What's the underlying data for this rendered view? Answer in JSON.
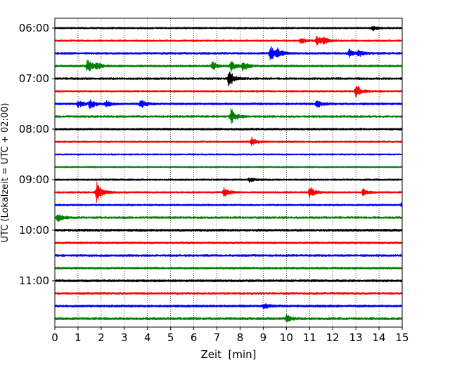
{
  "chart_data": {
    "type": "line",
    "title": "",
    "xlabel": "Zeit  [min]",
    "ylabel": "UTC (Lokalzeit = UTC + 02:00)",
    "xlim": [
      0,
      15
    ],
    "x_ticks": [
      "0",
      "1",
      "2",
      "3",
      "4",
      "5",
      "6",
      "7",
      "8",
      "9",
      "10",
      "11",
      "12",
      "13",
      "14",
      "15"
    ],
    "y_ticks": [
      "06:00",
      "07:00",
      "08:00",
      "09:00",
      "10:00",
      "11:00"
    ],
    "row_interval_min": 15,
    "vertical_grid": "dotted",
    "series": [
      {
        "start": "06:00",
        "color": "#000000",
        "amp": 0.12,
        "events": [
          {
            "x": 13.7,
            "amp": 0.4
          }
        ]
      },
      {
        "start": "06:15",
        "color": "#ff0000",
        "amp": 0.12,
        "events": [
          {
            "x": 10.6,
            "amp": 0.5
          },
          {
            "x": 11.3,
            "amp": 0.7
          },
          {
            "x": 11.6,
            "amp": 0.5
          }
        ]
      },
      {
        "start": "06:30",
        "color": "#0000ff",
        "amp": 0.14,
        "events": [
          {
            "x": 9.3,
            "amp": 1.1
          },
          {
            "x": 9.6,
            "amp": 0.7
          },
          {
            "x": 12.7,
            "amp": 0.6
          },
          {
            "x": 13.1,
            "amp": 0.5
          }
        ]
      },
      {
        "start": "06:45",
        "color": "#008000",
        "amp": 0.14,
        "events": [
          {
            "x": 1.4,
            "amp": 1.1
          },
          {
            "x": 1.8,
            "amp": 0.4
          },
          {
            "x": 6.8,
            "amp": 0.6
          },
          {
            "x": 7.6,
            "amp": 0.9
          },
          {
            "x": 8.1,
            "amp": 0.7
          }
        ]
      },
      {
        "start": "07:00",
        "color": "#000000",
        "amp": 0.14,
        "events": [
          {
            "x": 7.5,
            "amp": 1.4
          }
        ]
      },
      {
        "start": "07:15",
        "color": "#ff0000",
        "amp": 0.12,
        "events": [
          {
            "x": 13.0,
            "amp": 1.0
          }
        ]
      },
      {
        "start": "07:30",
        "color": "#0000ff",
        "amp": 0.14,
        "events": [
          {
            "x": 1.0,
            "amp": 0.5
          },
          {
            "x": 1.5,
            "amp": 0.8
          },
          {
            "x": 2.2,
            "amp": 0.4
          },
          {
            "x": 3.7,
            "amp": 0.7
          },
          {
            "x": 11.3,
            "amp": 0.6
          }
        ]
      },
      {
        "start": "07:45",
        "color": "#008000",
        "amp": 0.14,
        "events": [
          {
            "x": 7.6,
            "amp": 1.2
          }
        ]
      },
      {
        "start": "08:00",
        "color": "#000000",
        "amp": 0.14,
        "events": []
      },
      {
        "start": "08:15",
        "color": "#ff0000",
        "amp": 0.12,
        "events": [
          {
            "x": 8.5,
            "amp": 0.7
          }
        ]
      },
      {
        "start": "08:30",
        "color": "#0000ff",
        "amp": 0.1,
        "events": []
      },
      {
        "start": "08:45",
        "color": "#008000",
        "amp": 0.1,
        "events": []
      },
      {
        "start": "09:00",
        "color": "#000000",
        "amp": 0.12,
        "events": [
          {
            "x": 8.4,
            "amp": 0.3
          }
        ]
      },
      {
        "start": "09:15",
        "color": "#ff0000",
        "amp": 0.12,
        "events": [
          {
            "x": 1.8,
            "amp": 1.5
          },
          {
            "x": 7.3,
            "amp": 0.8
          },
          {
            "x": 11.0,
            "amp": 0.9
          },
          {
            "x": 13.3,
            "amp": 0.5
          }
        ]
      },
      {
        "start": "09:30",
        "color": "#0000ff",
        "amp": 0.12,
        "events": [
          {
            "x": 15.0,
            "amp": 0.6
          }
        ]
      },
      {
        "start": "09:45",
        "color": "#008000",
        "amp": 0.14,
        "events": [
          {
            "x": 0.1,
            "amp": 0.7
          }
        ]
      },
      {
        "start": "10:00",
        "color": "#000000",
        "amp": 0.16,
        "events": []
      },
      {
        "start": "10:15",
        "color": "#ff0000",
        "amp": 0.14,
        "events": []
      },
      {
        "start": "10:30",
        "color": "#0000ff",
        "amp": 0.14,
        "events": []
      },
      {
        "start": "10:45",
        "color": "#008000",
        "amp": 0.14,
        "events": []
      },
      {
        "start": "11:00",
        "color": "#000000",
        "amp": 0.16,
        "events": []
      },
      {
        "start": "11:15",
        "color": "#ff0000",
        "amp": 0.14,
        "events": []
      },
      {
        "start": "11:30",
        "color": "#0000ff",
        "amp": 0.16,
        "events": [
          {
            "x": 9.0,
            "amp": 0.4
          }
        ]
      },
      {
        "start": "11:45",
        "color": "#008000",
        "amp": 0.16,
        "events": [
          {
            "x": 10.0,
            "amp": 0.5
          }
        ]
      }
    ]
  }
}
